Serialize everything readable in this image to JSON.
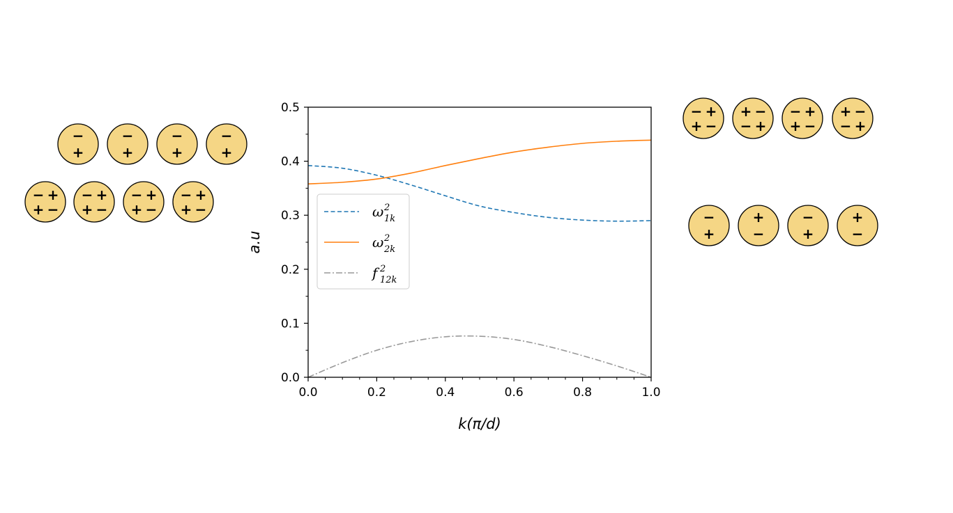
{
  "chart_data": {
    "type": "line",
    "title": "",
    "xlabel": "k(π/d)",
    "ylabel": "a.u",
    "xlim": [
      0.0,
      1.0
    ],
    "ylim": [
      0.0,
      0.5
    ],
    "xticks": [
      "0.0",
      "0.2",
      "0.4",
      "0.6",
      "0.8",
      "1.0"
    ],
    "yticks": [
      "0.0",
      "0.1",
      "0.2",
      "0.3",
      "0.4",
      "0.5"
    ],
    "legend_position": "center-left",
    "series": [
      {
        "name": "ω²₁ₖ",
        "legend_base": "ω",
        "legend_sup": "2",
        "legend_sub": "1k",
        "style": "dashed",
        "color": "#1f77b4",
        "x": [
          0.0,
          0.1,
          0.2,
          0.3,
          0.4,
          0.5,
          0.6,
          0.7,
          0.8,
          0.9,
          1.0
        ],
        "values": [
          0.392,
          0.387,
          0.374,
          0.356,
          0.336,
          0.317,
          0.305,
          0.296,
          0.291,
          0.289,
          0.29
        ]
      },
      {
        "name": "ω²₂ₖ",
        "legend_base": "ω",
        "legend_sup": "2",
        "legend_sub": "2k",
        "style": "solid",
        "color": "#ff7f0e",
        "x": [
          0.0,
          0.1,
          0.2,
          0.3,
          0.4,
          0.5,
          0.6,
          0.7,
          0.8,
          0.9,
          1.0
        ],
        "values": [
          0.358,
          0.361,
          0.367,
          0.378,
          0.392,
          0.405,
          0.417,
          0.426,
          0.433,
          0.437,
          0.439
        ]
      },
      {
        "name": "f²₁₂ₖ",
        "legend_base": "f",
        "legend_sup": "2",
        "legend_sub": "12k",
        "style": "dashdot",
        "color": "#999999",
        "x": [
          0.0,
          0.1,
          0.2,
          0.3,
          0.4,
          0.5,
          0.6,
          0.7,
          0.8,
          0.9,
          1.0
        ],
        "values": [
          0.0,
          0.027,
          0.05,
          0.066,
          0.075,
          0.076,
          0.07,
          0.057,
          0.04,
          0.021,
          0.0
        ]
      }
    ]
  },
  "illustrations": {
    "fill_color": "#f5d685",
    "left_top_row": [
      {
        "top": "−",
        "bottom": "+"
      },
      {
        "top": "−",
        "bottom": "+"
      },
      {
        "top": "−",
        "bottom": "+"
      },
      {
        "top": "−",
        "bottom": "+"
      }
    ],
    "left_bottom_row": [
      {
        "tl": "−",
        "tr": "+",
        "bl": "+",
        "br": "−"
      },
      {
        "tl": "−",
        "tr": "+",
        "bl": "+",
        "br": "−"
      },
      {
        "tl": "−",
        "tr": "+",
        "bl": "+",
        "br": "−"
      },
      {
        "tl": "−",
        "tr": "+",
        "bl": "+",
        "br": "−"
      }
    ],
    "right_top_row": [
      {
        "tl": "−",
        "tr": "+",
        "bl": "+",
        "br": "−"
      },
      {
        "tl": "+",
        "tr": "−",
        "bl": "−",
        "br": "+"
      },
      {
        "tl": "−",
        "tr": "+",
        "bl": "+",
        "br": "−"
      },
      {
        "tl": "+",
        "tr": "−",
        "bl": "−",
        "br": "+"
      }
    ],
    "right_bottom_row": [
      {
        "top": "−",
        "bottom": "+"
      },
      {
        "top": "+",
        "bottom": "−"
      },
      {
        "top": "−",
        "bottom": "+"
      },
      {
        "top": "+",
        "bottom": "−"
      }
    ]
  }
}
